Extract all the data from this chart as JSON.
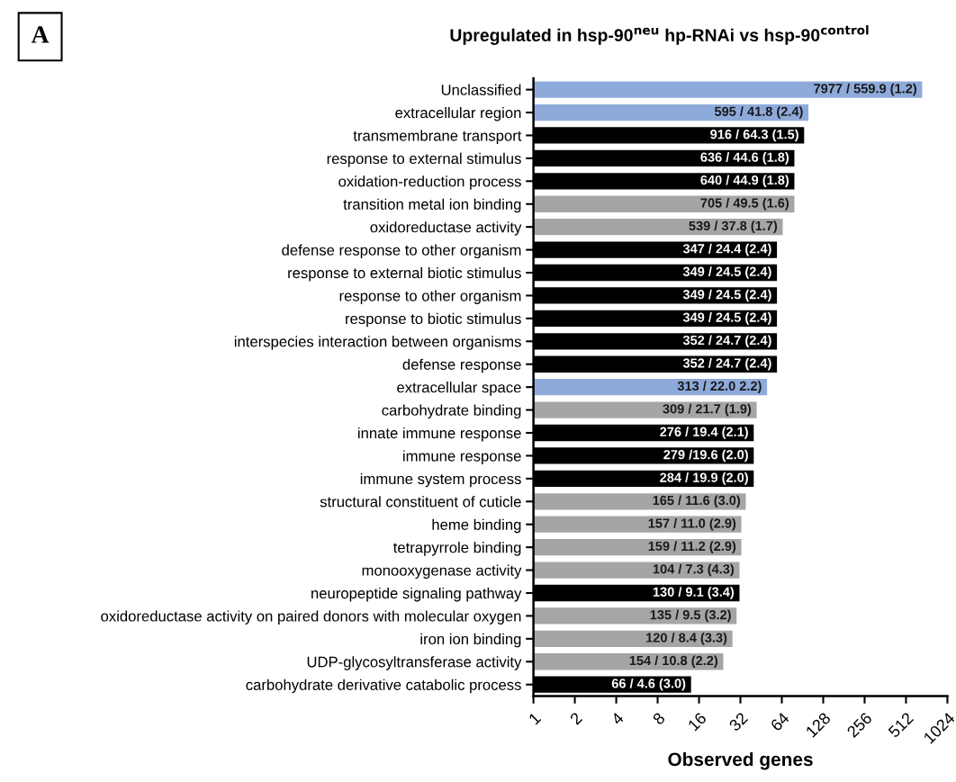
{
  "chart_data": {
    "type": "bar",
    "orientation": "horizontal",
    "log": "x",
    "title": "Upregulated in hsp-90$^{neu}$ hp-RNAi vs hsp-90$^{control}$",
    "xlabel": "Observed genes",
    "annotations": [
      "A",
      {
        "text": "7977 / 559.9 (1.2)",
        "x": 671,
        "y": "Unclassified"
      },
      {
        "text": "595 / 41.8 (2.4)",
        "x": 100,
        "y": "extracellular region"
      },
      {
        "text": "916 / 64.3 (1.5)",
        "x": 93,
        "y": "transmembrane transport"
      },
      {
        "text": "636 / 44.6 (1.8)",
        "x": 79,
        "y": "response to external stimulus"
      },
      {
        "text": "640 / 44.9 (1.8)",
        "x": 79,
        "y": "oxidation-reduction process"
      },
      {
        "text": "705 / 49.5 (1.6)",
        "x": 79,
        "y": "transition metal ion binding"
      },
      {
        "text": "539 / 37.8 (1.7)",
        "x": 65,
        "y": "oxidoreductase activity"
      },
      {
        "text": "347 / 24.4 (2.4)",
        "x": 59,
        "y": "defense response to other organism"
      },
      {
        "text": "349 / 24.5 (2.4)",
        "x": 59,
        "y": "response to external biotic stimulus"
      },
      {
        "text": "349 / 24.5 (2.4)",
        "x": 59,
        "y": "response to other organism"
      },
      {
        "text": "349 / 24.5 (2.4)",
        "x": 59,
        "y": "response to biotic stimulus"
      },
      {
        "text": "352 / 24.7 (2.4)",
        "x": 59,
        "y": "interspecies interaction between organisms"
      },
      {
        "text": "352 / 24.7 (2.4)",
        "x": 59,
        "y": "defense response"
      },
      {
        "text": "313 / 22.0 2.2)",
        "x": 50,
        "y": "extracellular space"
      },
      {
        "text": "309 / 21.7 (1.9)",
        "x": 42,
        "y": "carbohydrate binding"
      },
      {
        "text": "276 / 19.4 (2.1)",
        "x": 40,
        "y": "innate immune response"
      },
      {
        "text": "279 /19.6 (2.0)",
        "x": 40,
        "y": "immune response"
      },
      {
        "text": "284 / 19.9 (2.0)",
        "x": 40,
        "y": "immune system process"
      },
      {
        "text": "165 / 11.6 (3.0)",
        "x": 35,
        "y": "structural constituent of cuticle"
      },
      {
        "text": "157 / 11.0 (2.9)",
        "x": 32.5,
        "y": "heme binding"
      },
      {
        "text": "159 / 11.2 (2.9)",
        "x": 32.5,
        "y": "tetrapyrrole binding"
      },
      {
        "text": "104 / 7.3 (4.3)",
        "x": 31.5,
        "y": "monooxygenase activity"
      },
      {
        "text": "130 / 9.1 (3.4)",
        "x": 31.5,
        "y": "neuropeptide signaling pathway"
      },
      {
        "text": "135 / 9.5 (3.2)",
        "x": 30,
        "y": "oxidoreductase activity on paired donors with molecular oxygen"
      },
      {
        "text": "120 / 8.4 (3.3)",
        "x": 28,
        "y": "iron ion binding"
      },
      {
        "text": "154 / 10.8 (2.2)",
        "x": 24,
        "y": "UDP-glycosyltransferase activity"
      },
      {
        "text": "66 / 4.6 (3.0)",
        "x": 14,
        "y": "carbohydrate derivative catabolic process"
      }
    ],
    "categories": [
      "Unclassified",
      "extracellular region",
      "transmembrane transport",
      "response to external stimulus",
      "oxidation-reduction process",
      "transition metal ion binding",
      "oxidoreductase activity",
      "defense response to other organism",
      "response to external biotic stimulus",
      "response to other organism",
      "response to biotic stimulus",
      "interspecies interaction between organisms",
      "defense response",
      "extracellular space",
      "carbohydrate binding",
      "innate immune response",
      "immune response",
      "immune system process",
      "structural constituent of cuticle",
      "heme binding",
      "tetrapyrrole binding",
      "monooxygenase activity",
      "neuropeptide signaling pathway",
      "oxidoreductase activity on paired donors with molecular oxygen",
      "iron ion binding",
      "UDP-glycosyltransferase activity",
      "carbohydrate derivative catabolic process"
    ],
    "values": [
      671,
      100,
      93,
      79,
      79,
      79,
      65,
      59,
      59,
      59,
      59,
      59,
      59,
      50,
      42,
      40,
      40,
      40,
      35,
      32.5,
      32.5,
      31.5,
      31.5,
      30,
      28,
      24,
      14
    ],
    "colors": [
      "#8eaadb",
      "#8eaadb",
      "#000000",
      "#000000",
      "#000000",
      "#a5a5a8",
      "#a5a5a8",
      "#000000",
      "#000000",
      "#000000",
      "#000000",
      "#000000",
      "#000000",
      "#8eaadb",
      "#a5a5a8",
      "#000000",
      "#000000",
      "#000000",
      "#a5a5a8",
      "#a5a5a8",
      "#a5a5a8",
      "#a5a5a8",
      "#000000",
      "#a5a5a8",
      "#a5a5a8",
      "#a5a5a8",
      "#000000"
    ],
    "xlim": [
      1,
      1024
    ],
    "xticks": [
      1,
      2,
      4,
      8,
      16,
      32,
      64,
      128,
      256,
      512,
      1024
    ],
    "grid": false,
    "legend": false
  }
}
